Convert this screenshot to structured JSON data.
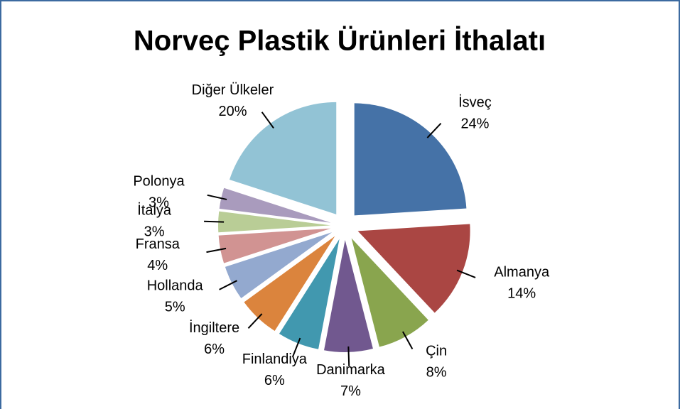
{
  "chart_data": {
    "type": "pie",
    "title": "Norveç Plastik Ürünleri İthalatı",
    "categories": [
      "İsveç",
      "Almanya",
      "Çin",
      "Danimarka",
      "Finlandiya",
      "İngiltere",
      "Hollanda",
      "Fransa",
      "İtalya",
      "Polonya",
      "Diğer Ülkeler"
    ],
    "values": [
      24,
      14,
      8,
      7,
      6,
      6,
      5,
      4,
      3,
      3,
      20
    ],
    "value_labels": [
      "24%",
      "14%",
      "8%",
      "7%",
      "6%",
      "6%",
      "5%",
      "4%",
      "3%",
      "3%",
      "20%"
    ],
    "colors": [
      "#4572a7",
      "#aa4643",
      "#89a54e",
      "#71588f",
      "#4198af",
      "#db843d",
      "#93a9cf",
      "#d19392",
      "#b9cd96",
      "#a99bbd",
      "#92c3d5"
    ]
  }
}
